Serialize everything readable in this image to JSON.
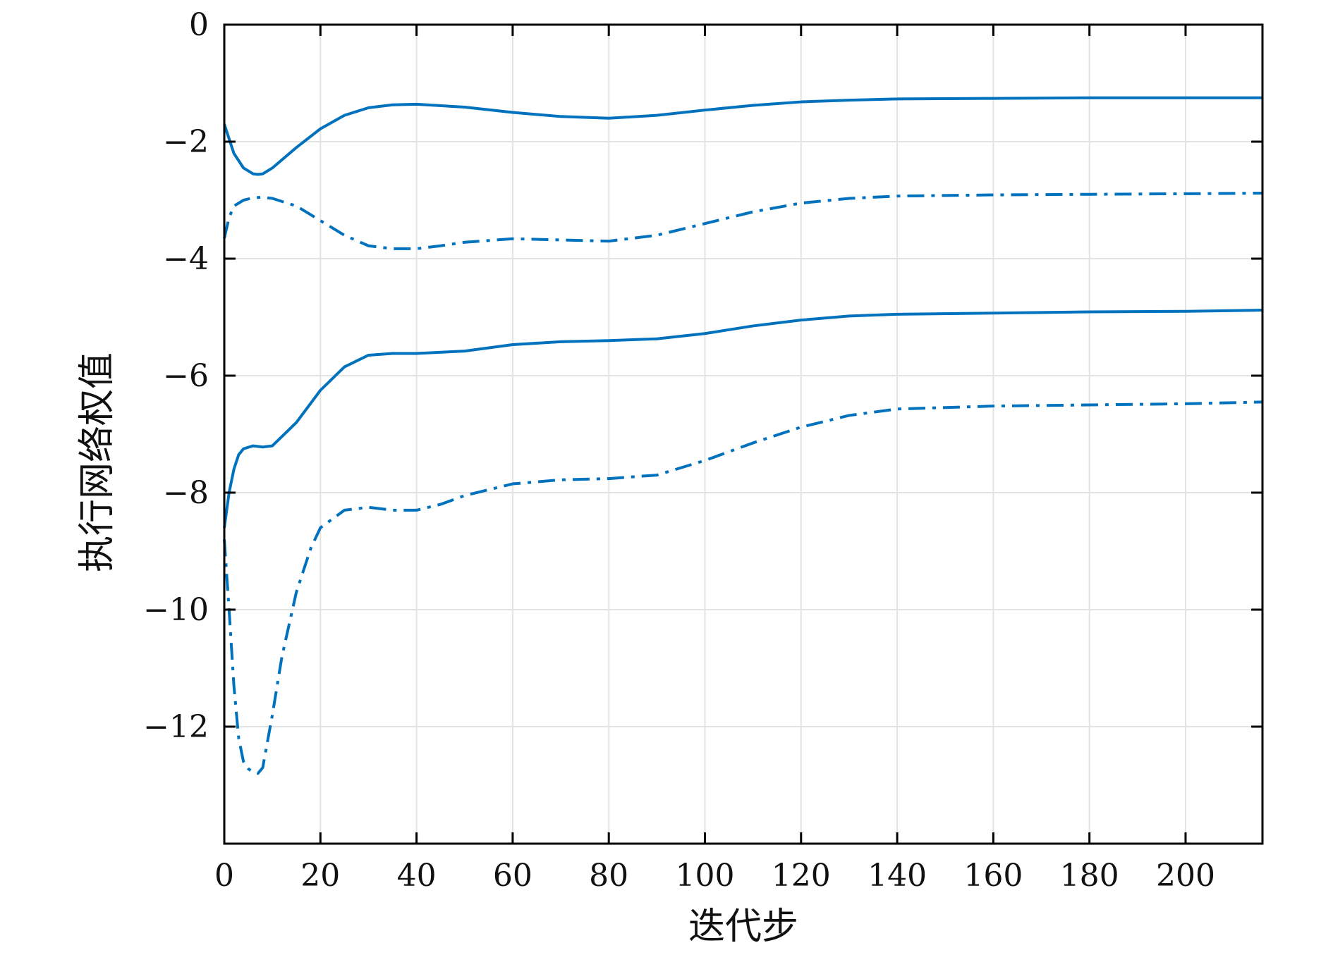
{
  "chart_data": {
    "type": "line",
    "xlabel": "迭代步",
    "ylabel": "执行网络权值",
    "xlim": [
      0,
      216
    ],
    "ylim": [
      -14,
      0
    ],
    "xticks": [
      0,
      20,
      40,
      60,
      80,
      100,
      120,
      140,
      160,
      180,
      200
    ],
    "xtick_labels": [
      "0",
      "20",
      "40",
      "60",
      "80",
      "100",
      "120",
      "140",
      "160",
      "180",
      "200"
    ],
    "yticks": [
      0,
      -2,
      -4,
      -6,
      -8,
      -10,
      -12
    ],
    "ytick_labels": [
      "0",
      "−2",
      "−4",
      "−6",
      "−8",
      "−10",
      "−12"
    ],
    "grid": true,
    "legend": "none",
    "color": "#0072BD",
    "series": [
      {
        "style": "solid",
        "x": [
          0,
          2,
          4,
          6,
          7,
          8,
          10,
          15,
          20,
          25,
          30,
          35,
          40,
          50,
          60,
          70,
          80,
          90,
          100,
          110,
          120,
          130,
          140,
          160,
          180,
          200,
          216
        ],
        "y": [
          -1.7,
          -2.2,
          -2.45,
          -2.55,
          -2.56,
          -2.55,
          -2.45,
          -2.1,
          -1.78,
          -1.55,
          -1.42,
          -1.37,
          -1.36,
          -1.41,
          -1.5,
          -1.57,
          -1.6,
          -1.55,
          -1.46,
          -1.38,
          -1.32,
          -1.29,
          -1.27,
          -1.26,
          -1.25,
          -1.25,
          -1.25
        ]
      },
      {
        "style": "dashdot",
        "x": [
          0,
          1,
          2,
          4,
          6,
          8,
          10,
          15,
          20,
          25,
          30,
          35,
          40,
          45,
          50,
          60,
          70,
          80,
          90,
          100,
          110,
          120,
          130,
          140,
          160,
          180,
          200,
          216
        ],
        "y": [
          -3.65,
          -3.3,
          -3.1,
          -3.0,
          -2.96,
          -2.95,
          -2.97,
          -3.1,
          -3.35,
          -3.6,
          -3.78,
          -3.83,
          -3.83,
          -3.78,
          -3.72,
          -3.66,
          -3.68,
          -3.7,
          -3.6,
          -3.4,
          -3.2,
          -3.05,
          -2.97,
          -2.93,
          -2.91,
          -2.9,
          -2.89,
          -2.88
        ]
      },
      {
        "style": "solid",
        "x": [
          0,
          1,
          2,
          3,
          4,
          6,
          8,
          10,
          15,
          20,
          25,
          30,
          35,
          40,
          50,
          60,
          70,
          80,
          90,
          100,
          110,
          120,
          130,
          140,
          160,
          180,
          200,
          216
        ],
        "y": [
          -8.6,
          -8.0,
          -7.6,
          -7.35,
          -7.25,
          -7.2,
          -7.22,
          -7.2,
          -6.8,
          -6.25,
          -5.85,
          -5.65,
          -5.62,
          -5.62,
          -5.58,
          -5.47,
          -5.42,
          -5.4,
          -5.37,
          -5.28,
          -5.15,
          -5.05,
          -4.98,
          -4.95,
          -4.93,
          -4.91,
          -4.9,
          -4.88
        ]
      },
      {
        "style": "dashdot",
        "x": [
          0,
          1,
          2,
          3,
          4,
          5,
          6,
          7,
          8,
          10,
          12,
          15,
          18,
          20,
          25,
          30,
          35,
          40,
          45,
          50,
          60,
          70,
          80,
          90,
          100,
          110,
          120,
          130,
          140,
          160,
          180,
          200,
          216
        ],
        "y": [
          -8.8,
          -10.0,
          -11.3,
          -12.2,
          -12.6,
          -12.72,
          -12.78,
          -12.8,
          -12.7,
          -11.8,
          -10.8,
          -9.7,
          -8.95,
          -8.6,
          -8.3,
          -8.25,
          -8.3,
          -8.3,
          -8.2,
          -8.05,
          -7.85,
          -7.78,
          -7.76,
          -7.7,
          -7.45,
          -7.15,
          -6.88,
          -6.68,
          -6.57,
          -6.52,
          -6.5,
          -6.48,
          -6.45
        ]
      }
    ]
  }
}
